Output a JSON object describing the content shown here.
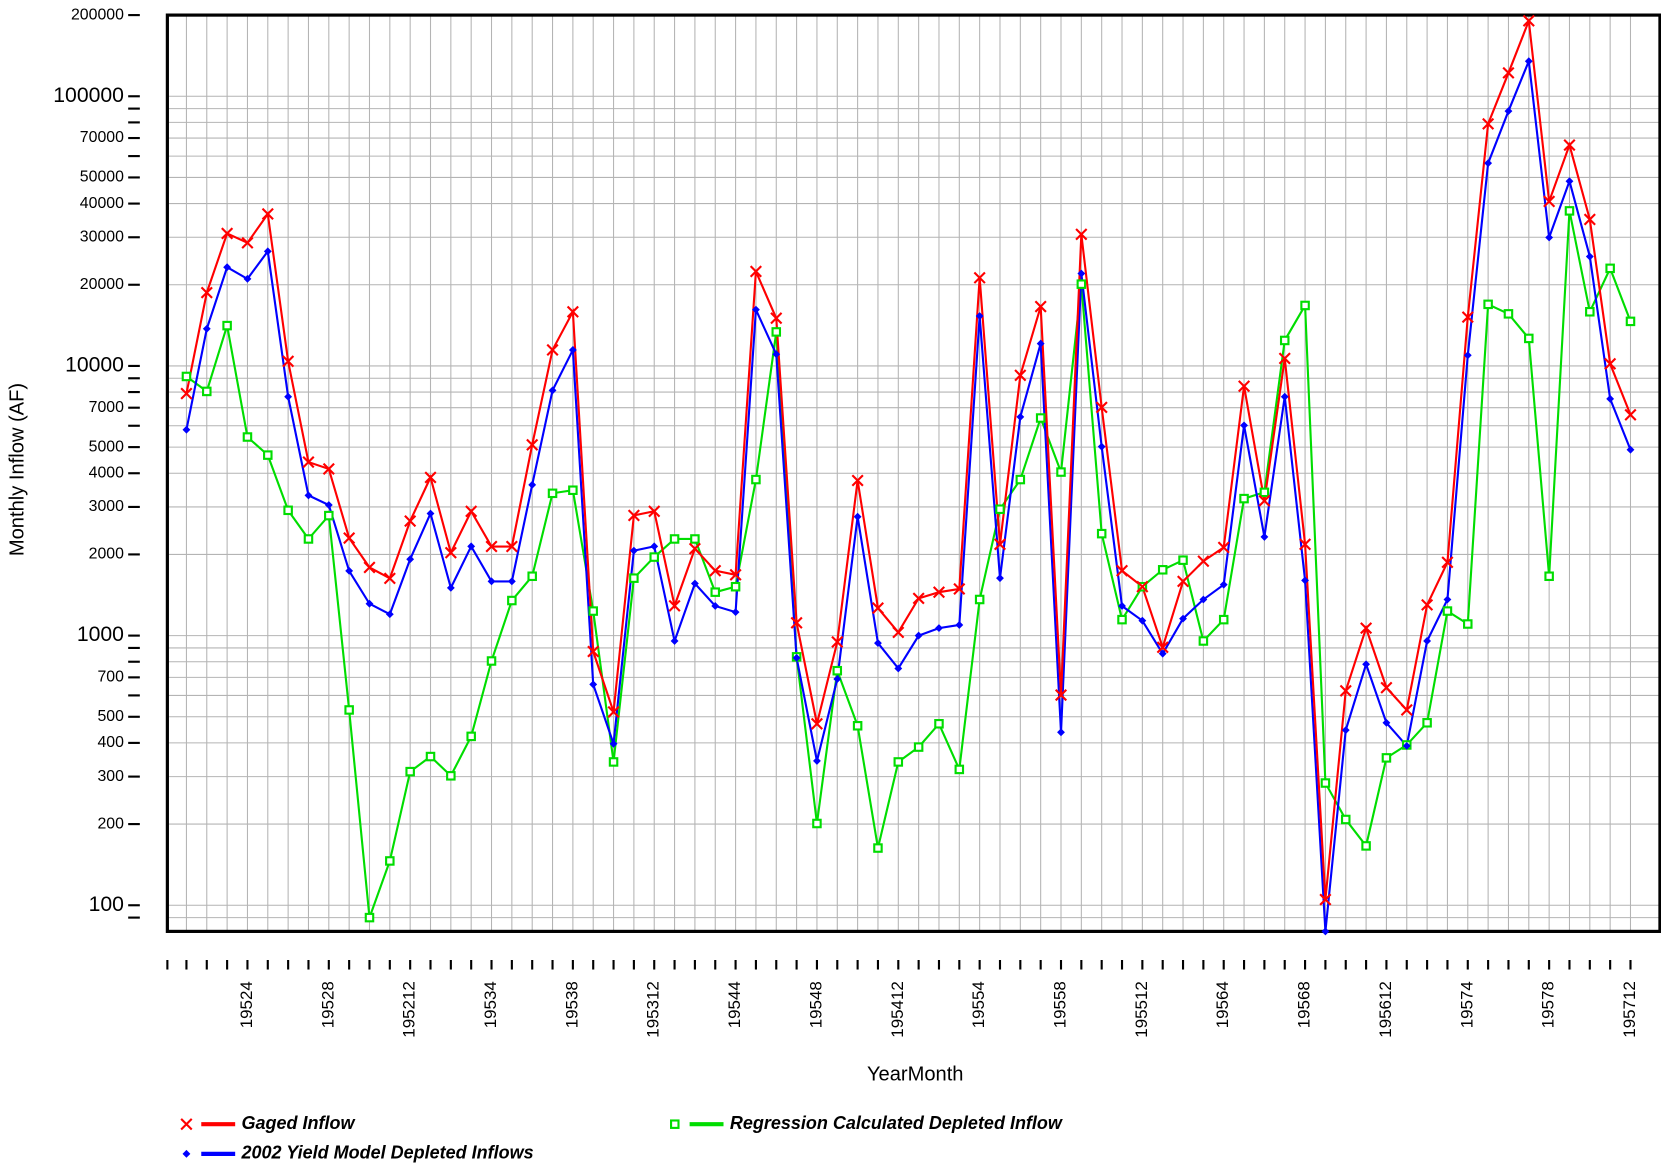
{
  "chart_data": {
    "type": "line",
    "xlabel": "YearMonth",
    "ylabel": "Monthly Inflow (AF)",
    "log_y": true,
    "grid": true,
    "legend": "bottom",
    "categories": [
      null,
      null,
      null,
      "19524",
      null,
      null,
      null,
      "19528",
      null,
      null,
      null,
      "195212",
      null,
      null,
      null,
      "19534",
      null,
      null,
      null,
      "19538",
      null,
      null,
      null,
      "195312",
      null,
      null,
      null,
      "19544",
      null,
      null,
      null,
      "19548",
      null,
      null,
      null,
      "195412",
      null,
      null,
      null,
      "19554",
      null,
      null,
      null,
      "19558",
      null,
      null,
      null,
      "195512",
      null,
      null,
      null,
      "19564",
      null,
      null,
      null,
      "19568",
      null,
      null,
      null,
      "195612",
      null,
      null,
      null,
      "19574",
      null,
      null,
      null,
      "19578",
      null,
      null,
      null,
      "195712"
    ],
    "ylim": [
      80,
      200000
    ],
    "yticks": [
      100,
      200,
      300,
      400,
      500,
      700,
      1000,
      2000,
      3000,
      4000,
      5000,
      7000,
      10000,
      20000,
      30000,
      40000,
      50000,
      70000,
      100000,
      200000
    ],
    "yminor_ticks": [
      90,
      600,
      800,
      900,
      6000,
      8000,
      9000,
      60000,
      80000,
      90000
    ],
    "series": [
      {
        "name": "Gaged Inflow",
        "color": "#ff0000",
        "marker": "x",
        "values": [
          7900,
          18700,
          31000,
          28600,
          36600,
          10400,
          4400,
          4150,
          2300,
          1790,
          1630,
          2660,
          3860,
          2030,
          2890,
          2140,
          2140,
          5100,
          11460,
          15880,
          873,
          521,
          2790,
          2890,
          1290,
          2100,
          1740,
          1680,
          22400,
          15030,
          1115,
          471,
          947,
          3760,
          1265,
          1028,
          1374,
          1449,
          1490,
          21230,
          2180,
          9230,
          16600,
          602,
          30760,
          7020,
          1740,
          1518,
          905,
          1589,
          1888,
          2123,
          8410,
          3160,
          10660,
          2180,
          105,
          624,
          1066,
          641,
          530,
          1300,
          1870,
          15170,
          79000,
          122100,
          190400,
          40740,
          65900,
          34940,
          10180,
          6590
        ]
      },
      {
        "name": "2002 Yield Model Depleted Inflows",
        "color": "#0000ff",
        "marker": "diamond",
        "values": [
          5800,
          13730,
          23230,
          21040,
          26610,
          7690,
          3310,
          3050,
          1738,
          1313,
          1200,
          1920,
          2836,
          1503,
          2143,
          1589,
          1589,
          3623,
          8115,
          11460,
          659,
          397,
          2065,
          2143,
          955,
          1560,
          1288,
          1222,
          16170,
          11050,
          827,
          343,
          690,
          2760,
          938,
          755,
          1000,
          1066,
          1095,
          15310,
          1633,
          6470,
          12100,
          438,
          22010,
          5020,
          1288,
          1136,
          857,
          1156,
          1361,
          1545,
          6020,
          2323,
          7690,
          1602,
          80,
          446,
          783,
          475,
          390,
          955,
          1361,
          10950,
          56490,
          88100,
          134900,
          29940,
          48420,
          25450,
          7550,
          4890
        ]
      },
      {
        "name": "Regression Calculated Depleted Inflow",
        "color": "#00dd00",
        "marker": "square",
        "values": [
          9140,
          8045,
          14110,
          5450,
          4670,
          2915,
          2282,
          2786,
          530,
          90,
          146,
          313,
          356,
          302,
          423,
          805,
          1349,
          1660,
          3370,
          3460,
          1233,
          340,
          1633,
          1955,
          2282,
          2282,
          1449,
          1518,
          3790,
          13370,
          834,
          201,
          741,
          463,
          163,
          340,
          386,
          471,
          319,
          1361,
          2942,
          3790,
          6410,
          4040,
          20100,
          2388,
          1146,
          1518,
          1754,
          1904,
          955,
          1146,
          3221,
          3398,
          12430,
          16760,
          284,
          208,
          166,
          352,
          393,
          475,
          1233,
          1104,
          16920,
          15600,
          12650,
          1660,
          37580,
          15880,
          23010,
          14630
        ]
      }
    ]
  }
}
